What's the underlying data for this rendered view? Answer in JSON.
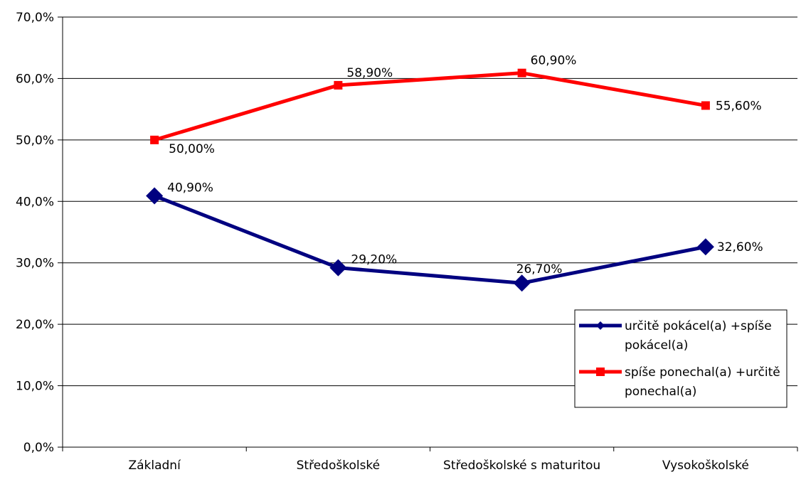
{
  "chart_data": {
    "type": "line",
    "categories": [
      "Základní",
      "Středoškolské",
      "Středoškolské s maturitou",
      "Vysokoškolské"
    ],
    "series": [
      {
        "name": "určitě pokácel(a) +spíše pokácel(a)",
        "name_lines": [
          "určitě pokácel(a) +spíše",
          "pokácel(a)"
        ],
        "values": [
          40.9,
          29.2,
          26.7,
          32.6
        ],
        "labels": [
          "40,90%",
          "29,20%",
          "26,70%",
          "32,60%"
        ],
        "color": "#000080",
        "marker": "diamond"
      },
      {
        "name": "spíše ponechal(a) +určitě ponechal(a)",
        "name_lines": [
          "spíše ponechal(a) +určitě",
          "ponechal(a)"
        ],
        "values": [
          50.0,
          58.9,
          60.9,
          55.6
        ],
        "labels": [
          "50,00%",
          "58,90%",
          "60,90%",
          "55,60%"
        ],
        "color": "#ff0000",
        "marker": "square"
      }
    ],
    "ylim": [
      0,
      70
    ],
    "yticks": [
      0,
      10,
      20,
      30,
      40,
      50,
      60,
      70
    ],
    "ytick_labels": [
      "0,0%",
      "10,0%",
      "20,0%",
      "30,0%",
      "40,0%",
      "50,0%",
      "60,0%",
      "70,0%"
    ],
    "grid": true,
    "legend_position": "right"
  }
}
